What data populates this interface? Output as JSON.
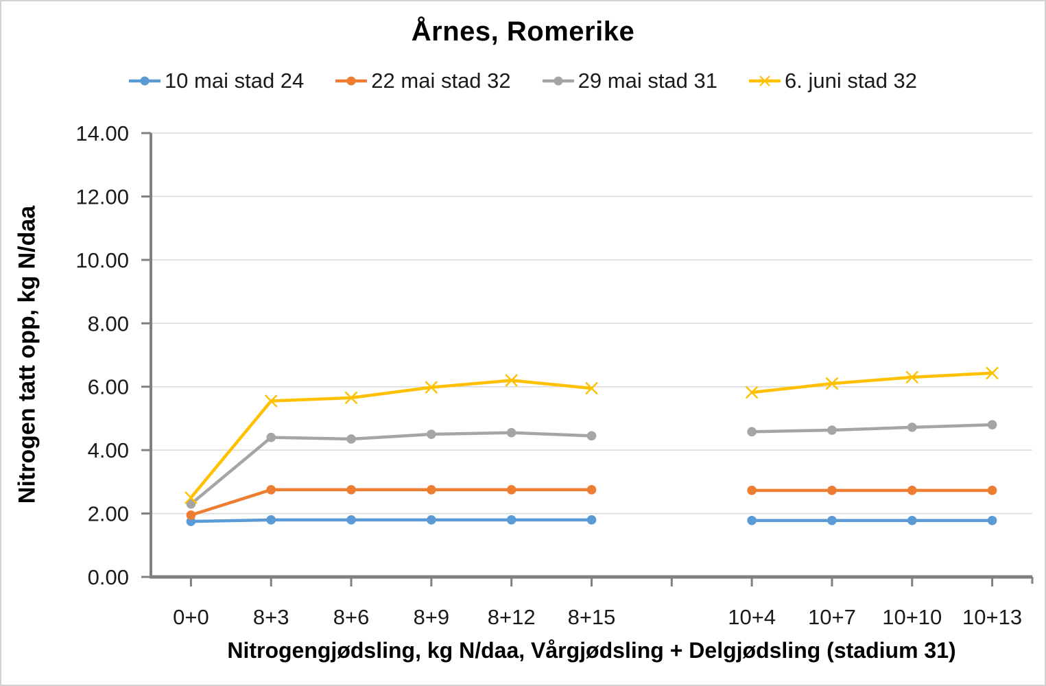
{
  "colors": {
    "gridline": "#D9D9D9",
    "axis": "#808080",
    "tick_text": "#1a1a1a",
    "title_text": "#000000"
  },
  "chart_data": {
    "type": "line",
    "title": "Årnes, Romerike",
    "xlabel": "Nitrogengjødsling, kg N/daa, Vårgjødsling + Delgjødsling (stadium 31)",
    "ylabel": "Nitrogen tatt opp, kg N/daa",
    "ylim": [
      0,
      14
    ],
    "y_tick_step": 2,
    "y_tick_labels": [
      "0.00",
      "2.00",
      "4.00",
      "6.00",
      "8.00",
      "10.00",
      "12.00",
      "14.00"
    ],
    "grid": true,
    "legend_position": "top",
    "categories": [
      "0+0",
      "8+3",
      "8+6",
      "8+9",
      "8+12",
      "8+15",
      "",
      "10+4",
      "10+7",
      "10+10",
      "10+13"
    ],
    "series": [
      {
        "name": "10 mai stad 24",
        "color": "#5B9BD5",
        "marker": "circle",
        "values": [
          1.75,
          1.8,
          1.8,
          1.8,
          1.8,
          1.8,
          null,
          1.78,
          1.78,
          1.78,
          1.78
        ]
      },
      {
        "name": "22 mai stad 32",
        "color": "#ED7D31",
        "marker": "circle",
        "values": [
          1.95,
          2.75,
          2.75,
          2.75,
          2.75,
          2.75,
          null,
          2.73,
          2.73,
          2.73,
          2.73
        ]
      },
      {
        "name": "29 mai stad 31",
        "color": "#A5A5A5",
        "marker": "circle",
        "values": [
          2.3,
          4.4,
          4.35,
          4.5,
          4.55,
          4.45,
          null,
          4.58,
          4.63,
          4.72,
          4.8
        ]
      },
      {
        "name": "6. juni stad 32",
        "color": "#FFC000",
        "marker": "x",
        "values": [
          2.5,
          5.55,
          5.65,
          5.98,
          6.2,
          5.95,
          null,
          5.82,
          6.1,
          6.3,
          6.43
        ]
      }
    ]
  }
}
